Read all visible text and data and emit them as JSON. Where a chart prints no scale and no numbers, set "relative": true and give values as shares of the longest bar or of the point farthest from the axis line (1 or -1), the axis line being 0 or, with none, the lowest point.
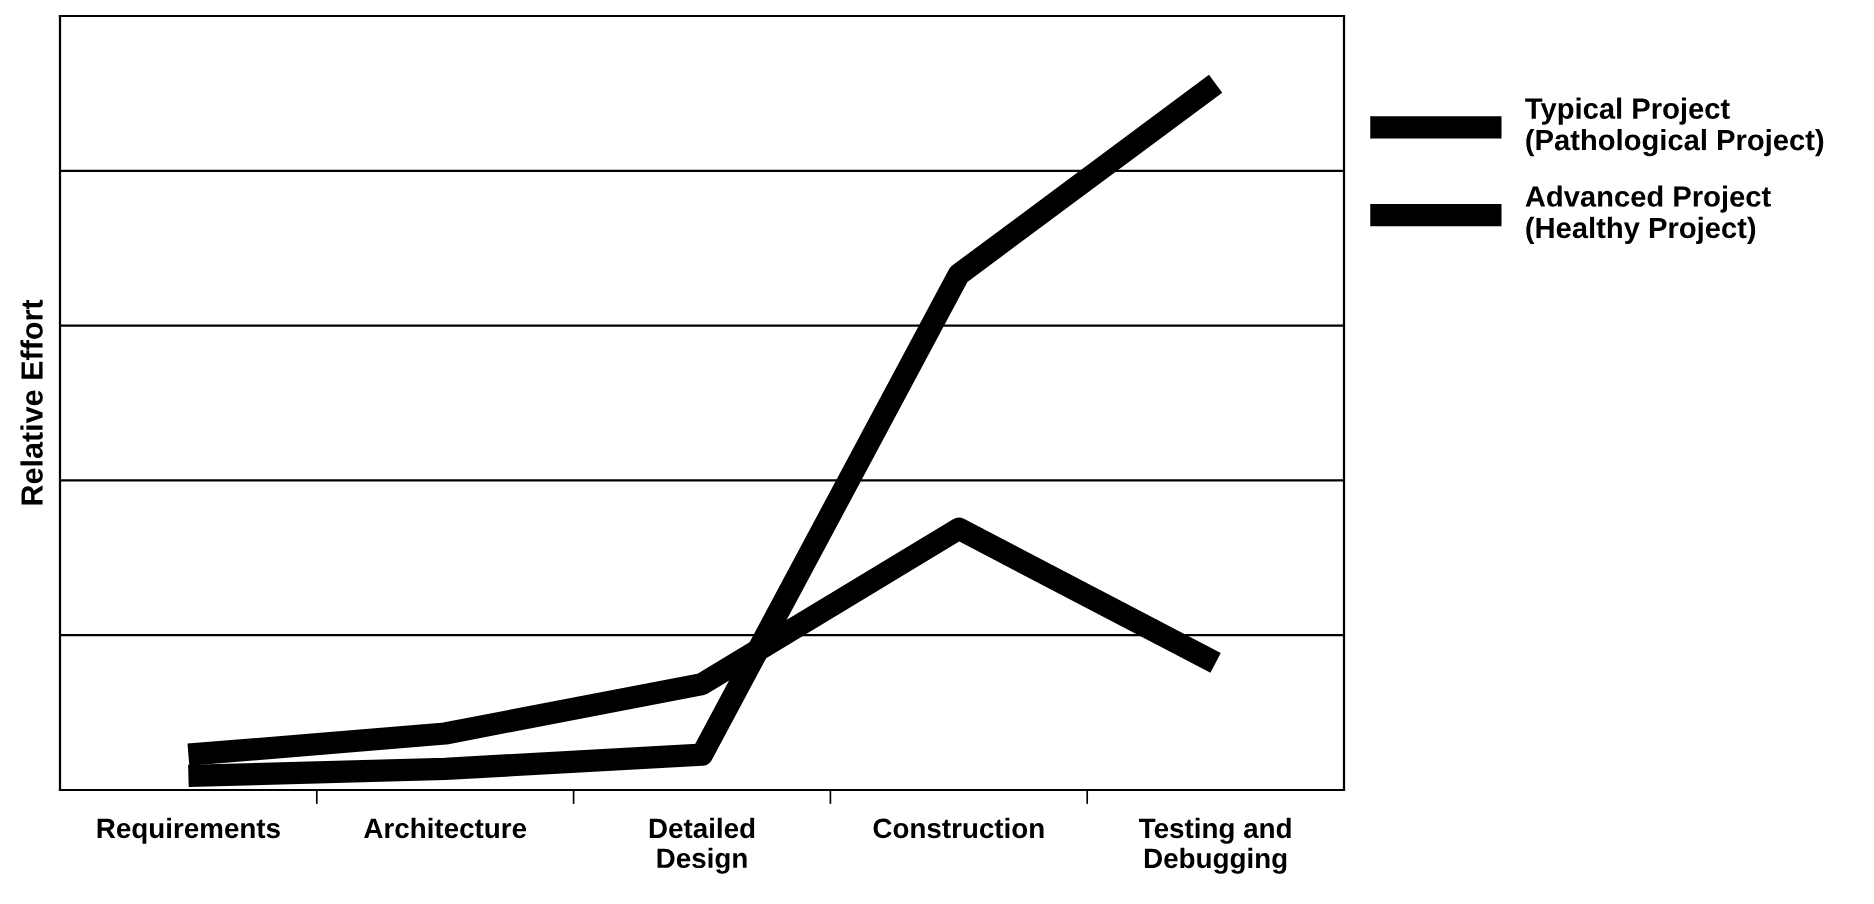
{
  "chart_data": {
    "type": "line",
    "ylabel": "Relative Effort",
    "relative": true,
    "grid": "y",
    "legend": "right",
    "line_style": "solid",
    "marker": "none",
    "categories": [
      "Requirements",
      "Architecture",
      "Detailed\nDesign",
      "Construction",
      "Testing and\nDebugging"
    ],
    "series": [
      {
        "name": "Typical Project\n(Pathological Project)",
        "color": "#000000",
        "values": [
          0.02,
          0.03,
          0.05,
          0.73,
          1.0
        ]
      },
      {
        "name": "Advanced Project\n(Healthy Project)",
        "color": "#000000",
        "values": [
          0.05,
          0.08,
          0.15,
          0.37,
          0.18
        ]
      }
    ]
  }
}
